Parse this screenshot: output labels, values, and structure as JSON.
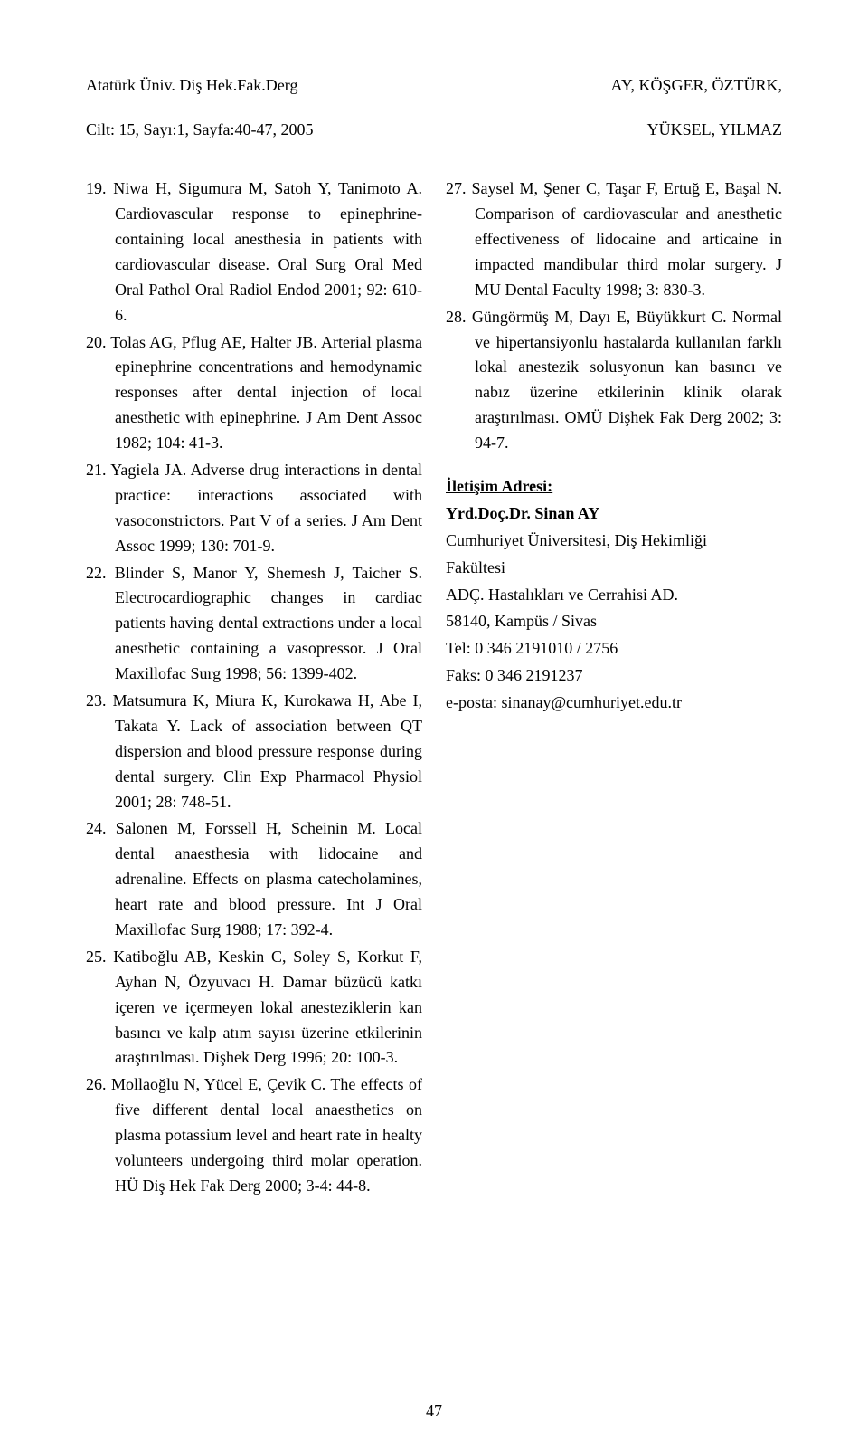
{
  "header": {
    "left_line1": "Atatürk Üniv. Diş Hek.Fak.Derg",
    "left_line2": "Cilt: 15, Sayı:1, Sayfa:40-47, 2005",
    "right_line1": "AY, KÖŞGER, ÖZTÜRK,",
    "right_line2": "YÜKSEL, YILMAZ"
  },
  "refs_left": [
    "19. Niwa H, Sigumura M, Satoh Y, Tanimoto A. Cardiovascular response to epinephrine-containing local anesthesia in patients with cardiovascular disease. Oral Surg Oral Med Oral Pathol Oral Radiol Endod 2001; 92: 610-6.",
    "20. Tolas AG, Pflug AE, Halter JB. Arterial plasma epinephrine concentrations and hemodynamic responses after dental injection of local anesthetic with epinephrine. J Am Dent Assoc 1982; 104: 41-3.",
    "21. Yagiela JA. Adverse drug interactions in dental practice: interactions associated with vasoconstrictors. Part V of a series. J Am Dent Assoc 1999; 130: 701-9.",
    "22. Blinder S, Manor Y, Shemesh J, Taicher S. Electrocardiographic changes in cardiac patients having dental extractions under a local anesthetic containing a vasopressor. J Oral Maxillofac Surg 1998; 56: 1399-402.",
    "23. Matsumura K, Miura K, Kurokawa H, Abe I, Takata Y. Lack of association between QT dispersion and blood pressure response during dental surgery. Clin Exp Pharmacol Physiol 2001; 28: 748-51.",
    "24. Salonen M, Forssell H, Scheinin M. Local dental anaesthesia with lidocaine and adrenaline. Effects on plasma catecholamines, heart rate and blood pressure. Int J Oral Maxillofac Surg 1988; 17: 392-4.",
    "25. Katiboğlu AB, Keskin C, Soley S, Korkut F, Ayhan N, Özyuvacı H. Damar büzücü katkı içeren ve içermeyen lokal anesteziklerin kan basıncı ve kalp atım sayısı üzerine etkilerinin araştırılması. Dişhek Derg 1996; 20: 100-3.",
    "26. Mollaoğlu N, Yücel E, Çevik C. The effects of five different dental local anaesthetics on plasma potassium level and heart rate in healty volunteers undergoing third molar operation. HÜ Diş Hek Fak Derg 2000; 3-4: 44-8."
  ],
  "refs_right": [
    "27. Saysel M, Şener C, Taşar F, Ertuğ E, Başal N. Comparison of cardiovascular and anesthetic effectiveness of lidocaine and articaine in impacted mandibular third molar surgery. J MU Dental Faculty 1998; 3: 830-3.",
    "28. Güngörmüş M, Dayı E, Büyükkurt C. Normal ve hipertansiyonlu hastalarda kullanılan farklı lokal anestezik solusyonun kan basıncı ve nabız üzerine etkilerinin klinik olarak araştırılması. OMÜ Dişhek Fak Derg 2002; 3: 94-7."
  ],
  "contact": {
    "heading": "İletişim Adresi:",
    "name": "Yrd.Doç.Dr. Sinan AY",
    "line1": "Cumhuriyet Üniversitesi, Diş Hekimliği",
    "line2": "Fakültesi",
    "line3": "ADÇ. Hastalıkları ve Cerrahisi AD.",
    "line4": "58140, Kampüs / Sivas",
    "line5": "Tel: 0 346 2191010 / 2756",
    "line6": "Faks: 0 346 2191237",
    "line7": "e-posta: sinanay@cumhuriyet.edu.tr"
  },
  "page_number": "47"
}
